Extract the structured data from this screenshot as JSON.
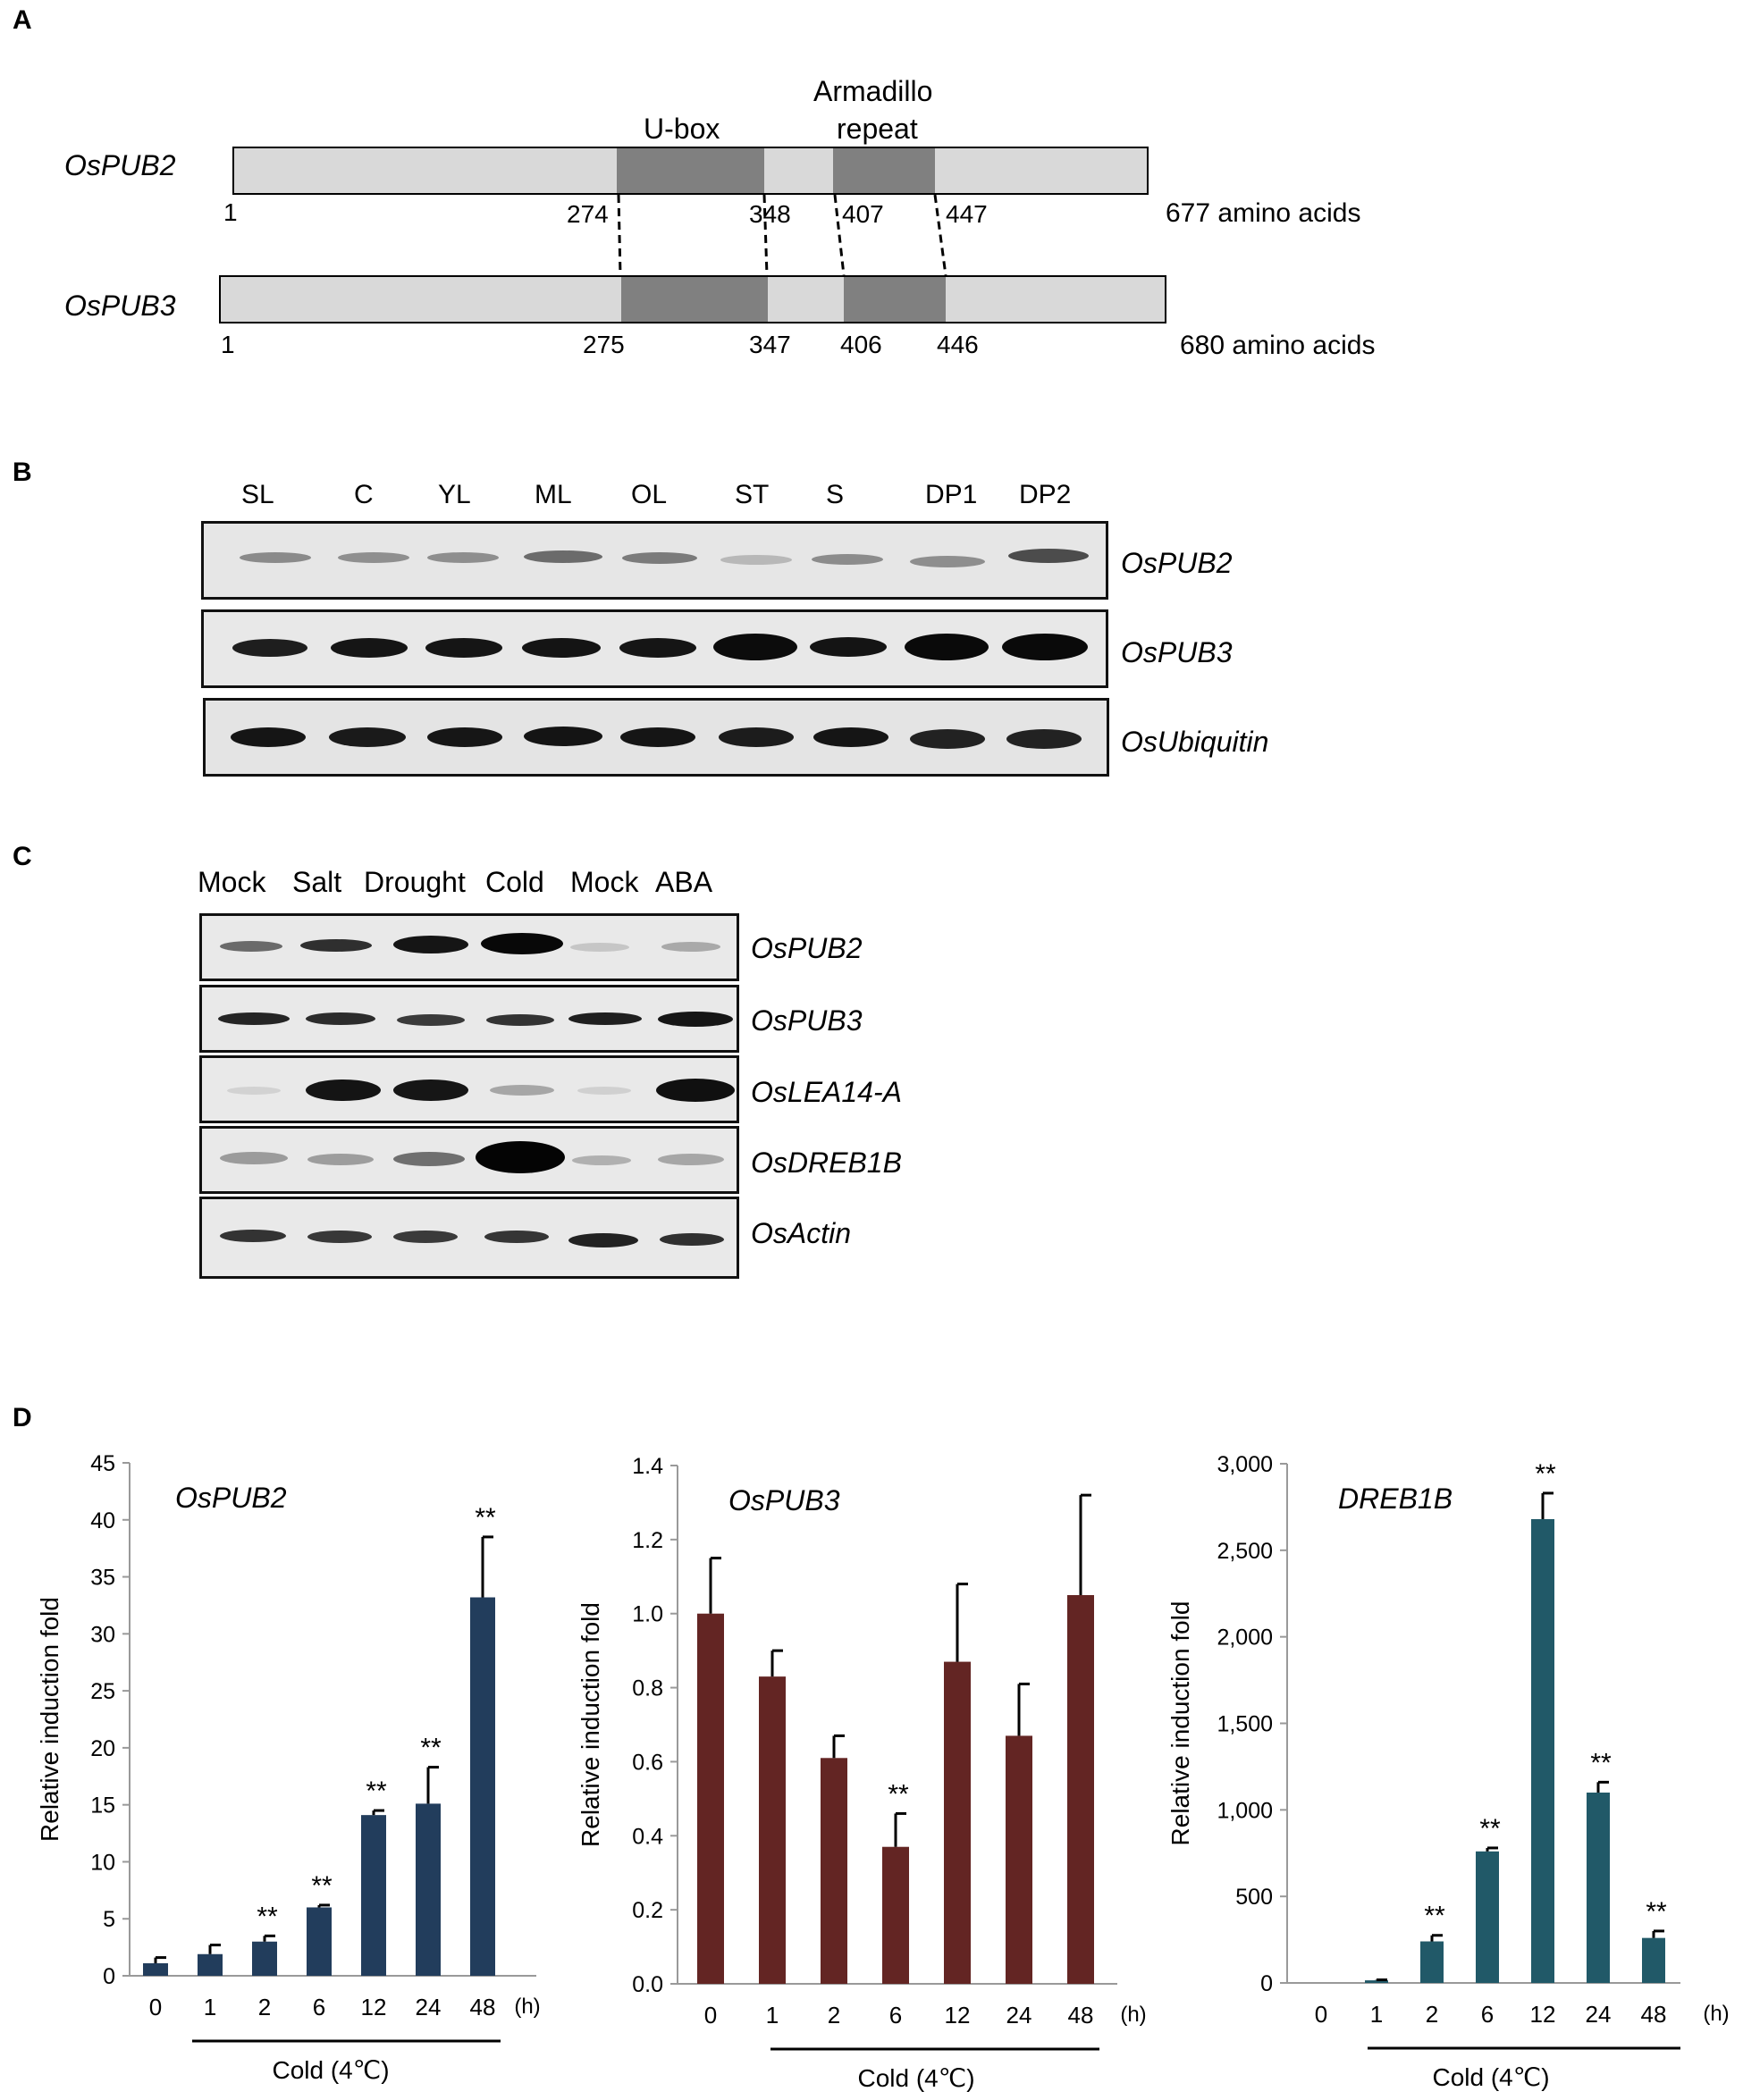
{
  "panel_a": {
    "letter": "A",
    "domain_labels": {
      "ubox": "U-box",
      "arm_line1": "Armadillo",
      "arm_line2": "repeat"
    },
    "proteins": [
      {
        "name": "OsPUB2",
        "start": "1",
        "positions": [
          "274",
          "348",
          "407",
          "447"
        ],
        "length": "677 amino acids"
      },
      {
        "name": "OsPUB3",
        "start": "1",
        "positions": [
          "275",
          "347",
          "406",
          "446"
        ],
        "length": "680 amino acids"
      }
    ],
    "colors": {
      "protein_body": "#d9d9d9",
      "domain": "#808080"
    }
  },
  "panel_b": {
    "letter": "B",
    "lanes": [
      "SL",
      "C",
      "YL",
      "ML",
      "OL",
      "ST",
      "S",
      "DP1",
      "DP2"
    ],
    "genes": [
      "OsPUB2",
      "OsPUB3",
      "OsUbiquitin"
    ]
  },
  "panel_c": {
    "letter": "C",
    "lanes": [
      "Mock",
      "Salt",
      "Drought",
      "Cold",
      "Mock",
      "ABA"
    ],
    "genes": [
      "OsPUB2",
      "OsPUB3",
      "OsLEA14-A",
      "OsDREB1B",
      "OsActin"
    ]
  },
  "panel_d": {
    "letter": "D",
    "ylabel": "Relative induction fold",
    "time_unit": "(h)",
    "treatment": "Cold (4℃)",
    "chart_data": [
      {
        "type": "bar",
        "title": "OsPUB2",
        "categories": [
          "0",
          "1",
          "2",
          "6",
          "12",
          "24",
          "48"
        ],
        "values": [
          1.1,
          1.9,
          3.0,
          6.0,
          14.1,
          15.1,
          33.2
        ],
        "errors": [
          0.5,
          0.8,
          0.5,
          0.2,
          0.4,
          3.2,
          5.3
        ],
        "significance": [
          "",
          "",
          "**",
          "**",
          "**",
          "**",
          "**"
        ],
        "ylim": [
          0,
          45
        ],
        "yticks": [
          "0",
          "5",
          "10",
          "15",
          "20",
          "25",
          "30",
          "35",
          "40",
          "45"
        ],
        "ytick_values": [
          0,
          5,
          10,
          15,
          20,
          25,
          30,
          35,
          40,
          45
        ],
        "color": "#223d5c"
      },
      {
        "type": "bar",
        "title": "OsPUB3",
        "categories": [
          "0",
          "1",
          "2",
          "6",
          "12",
          "24",
          "48"
        ],
        "values": [
          1.0,
          0.83,
          0.61,
          0.37,
          0.87,
          0.67,
          1.05
        ],
        "errors": [
          0.15,
          0.07,
          0.06,
          0.09,
          0.21,
          0.14,
          0.27
        ],
        "significance": [
          "",
          "",
          "",
          "**",
          "",
          "",
          ""
        ],
        "ylim": [
          0,
          1.4
        ],
        "yticks": [
          "0.0",
          "0.2",
          "0.4",
          "0.6",
          "0.8",
          "1.0",
          "1.2",
          "1.4"
        ],
        "ytick_values": [
          0,
          0.2,
          0.4,
          0.6,
          0.8,
          1.0,
          1.2,
          1.4
        ],
        "color": "#632523"
      },
      {
        "type": "bar",
        "title": "DREB1B",
        "categories": [
          "0",
          "1",
          "2",
          "6",
          "12",
          "24",
          "48"
        ],
        "values": [
          1,
          15,
          240,
          760,
          2680,
          1100,
          260
        ],
        "errors": [
          0,
          3,
          35,
          20,
          150,
          60,
          40
        ],
        "significance": [
          "",
          "",
          "**",
          "**",
          "**",
          "**",
          "**"
        ],
        "ylim": [
          0,
          3000
        ],
        "yticks": [
          "0",
          "500",
          "1,000",
          "1,500",
          "2,000",
          "2,500",
          "3,000"
        ],
        "ytick_values": [
          0,
          500,
          1000,
          1500,
          2000,
          2500,
          3000
        ],
        "color": "#215968"
      }
    ]
  }
}
